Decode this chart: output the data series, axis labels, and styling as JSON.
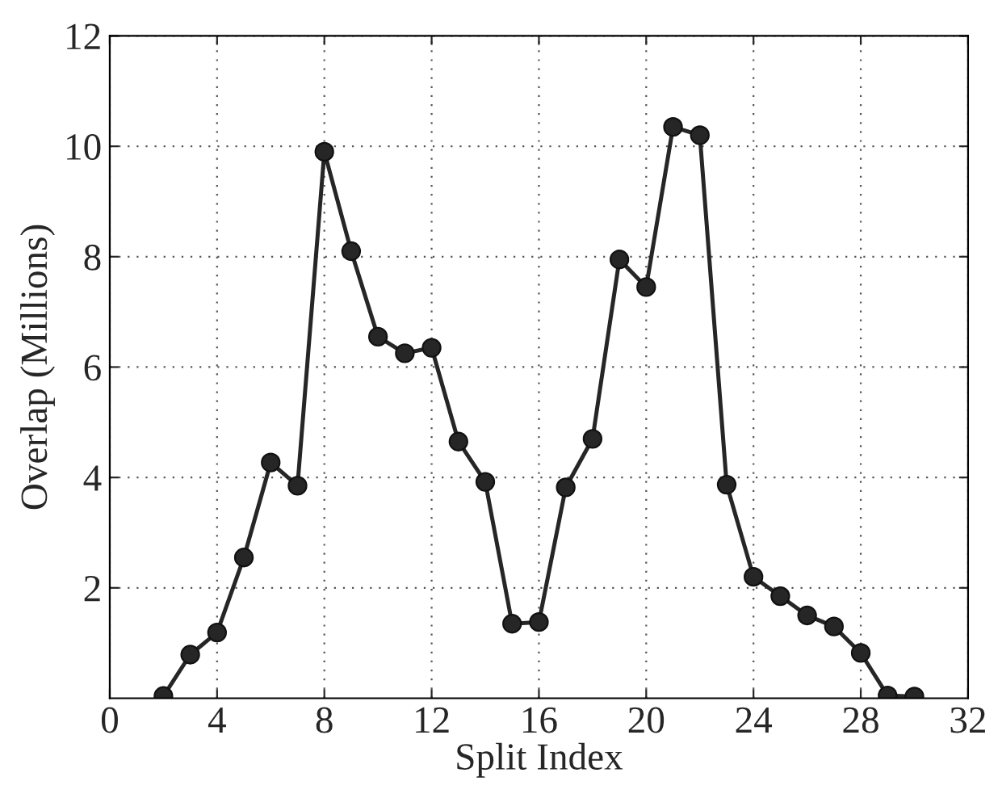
{
  "chart_data": {
    "type": "line",
    "xlabel": "Split Index",
    "ylabel": "Overlap (Millions)",
    "x": [
      2,
      3,
      4,
      5,
      6,
      7,
      8,
      9,
      10,
      11,
      12,
      13,
      14,
      15,
      16,
      17,
      18,
      19,
      20,
      21,
      22,
      23,
      24,
      25,
      26,
      27,
      28,
      29,
      30
    ],
    "series": [
      {
        "color": "#262626",
        "values": [
          0.04,
          0.79,
          1.19,
          2.55,
          4.27,
          3.85,
          9.9,
          8.1,
          6.55,
          6.25,
          6.35,
          4.65,
          3.92,
          1.35,
          1.38,
          3.82,
          4.7,
          7.95,
          7.45,
          10.35,
          10.2,
          3.87,
          2.2,
          1.85,
          1.5,
          1.3,
          0.82,
          0.05,
          0.03
        ]
      }
    ],
    "xlim": [
      0,
      32
    ],
    "xticks": [
      0,
      4,
      8,
      12,
      16,
      20,
      24,
      28,
      32
    ],
    "ylim": [
      0,
      12
    ],
    "yticks": [
      2,
      4,
      6,
      8,
      10,
      12
    ],
    "grid": true,
    "marker": "circle",
    "line_style": "solid"
  }
}
